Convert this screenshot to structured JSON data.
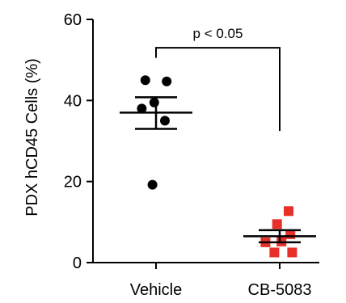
{
  "chart_data": {
    "type": "scatter",
    "title": "",
    "xlabel": "",
    "ylabel": "PDX hCD45 Cells (%)",
    "ylim": [
      0,
      60
    ],
    "yticks": [
      0,
      20,
      40,
      60
    ],
    "grid": false,
    "categories": [
      "Vehicle",
      "CB-5083"
    ],
    "series": [
      {
        "category": "Vehicle",
        "marker": "circle",
        "color": "#000000",
        "points": [
          {
            "offset": -0.12,
            "value": 45
          },
          {
            "offset": 0.12,
            "value": 44.7
          },
          {
            "offset": -0.16,
            "value": 38
          },
          {
            "offset": 0.1,
            "value": 35
          },
          {
            "offset": -0.02,
            "value": 39.5
          },
          {
            "offset": -0.04,
            "value": 19.2
          }
        ],
        "mean": 37,
        "sem_upper": 40.8,
        "sem_lower": 33.0
      },
      {
        "category": "CB-5083",
        "marker": "square",
        "color": "#e8302a",
        "points": [
          {
            "offset": -0.03,
            "value": 9.5
          },
          {
            "offset": 0.1,
            "value": 12.7
          },
          {
            "offset": -0.16,
            "value": 5
          },
          {
            "offset": 0.02,
            "value": 5.2
          },
          {
            "offset": 0.12,
            "value": 7
          },
          {
            "offset": -0.06,
            "value": 2.5
          },
          {
            "offset": 0.14,
            "value": 2.5
          }
        ],
        "mean": 6.5,
        "sem_upper": 8.0,
        "sem_lower": 5.0
      }
    ],
    "annotation": {
      "text": "p < 0.05",
      "left_top": 53,
      "right_top": 53,
      "left_bottom": 50.5,
      "right_bottom": 32.5
    }
  }
}
